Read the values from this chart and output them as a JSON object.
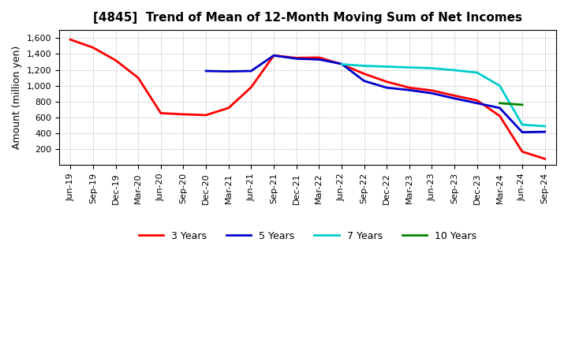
{
  "title": "[4845]  Trend of Mean of 12-Month Moving Sum of Net Incomes",
  "ylabel": "Amount (million yen)",
  "background_color": "#ffffff",
  "grid_color": "#aaaaaa",
  "ylim": [
    0,
    1700
  ],
  "yticks": [
    200,
    400,
    600,
    800,
    1000,
    1200,
    1400,
    1600
  ],
  "legend_labels": [
    "3 Years",
    "5 Years",
    "7 Years",
    "10 Years"
  ],
  "legend_colors": [
    "#ff0000",
    "#0000cc",
    "#00cccc",
    "#008800"
  ],
  "series": {
    "3y": {
      "color": "#ff0000",
      "points": [
        [
          0,
          1580
        ],
        [
          1,
          1480
        ],
        [
          2,
          1320
        ],
        [
          3,
          1100
        ],
        [
          4,
          655
        ],
        [
          5,
          640
        ],
        [
          6,
          630
        ],
        [
          7,
          720
        ],
        [
          8,
          980
        ],
        [
          9,
          1380
        ],
        [
          10,
          1350
        ],
        [
          11,
          1355
        ],
        [
          12,
          1270
        ],
        [
          13,
          1150
        ],
        [
          14,
          1050
        ],
        [
          15,
          975
        ],
        [
          16,
          940
        ],
        [
          17,
          875
        ],
        [
          18,
          815
        ],
        [
          19,
          620
        ],
        [
          20,
          170
        ],
        [
          21,
          80
        ]
      ]
    },
    "5y": {
      "color": "#0000cc",
      "points": [
        [
          6,
          1185
        ],
        [
          7,
          1180
        ],
        [
          8,
          1185
        ],
        [
          9,
          1380
        ],
        [
          10,
          1340
        ],
        [
          11,
          1330
        ],
        [
          12,
          1275
        ],
        [
          13,
          1060
        ],
        [
          14,
          975
        ],
        [
          15,
          945
        ],
        [
          16,
          905
        ],
        [
          17,
          840
        ],
        [
          18,
          780
        ],
        [
          19,
          720
        ],
        [
          20,
          415
        ],
        [
          21,
          420
        ]
      ]
    },
    "7y": {
      "color": "#00cccc",
      "points": [
        [
          12,
          1270
        ],
        [
          13,
          1250
        ],
        [
          14,
          1240
        ],
        [
          15,
          1230
        ],
        [
          16,
          1220
        ],
        [
          17,
          1195
        ],
        [
          18,
          1165
        ],
        [
          19,
          1000
        ],
        [
          20,
          510
        ],
        [
          21,
          490
        ]
      ]
    },
    "10y": {
      "color": "#008800",
      "points": [
        [
          19,
          780
        ],
        [
          20,
          760
        ]
      ]
    }
  },
  "xtick_labels": [
    "Jun-19",
    "Sep-19",
    "Dec-19",
    "Mar-20",
    "Jun-20",
    "Sep-20",
    "Dec-20",
    "Mar-21",
    "Jun-21",
    "Sep-21",
    "Dec-21",
    "Mar-22",
    "Jun-22",
    "Sep-22",
    "Dec-22",
    "Mar-23",
    "Jun-23",
    "Sep-23",
    "Dec-23",
    "Mar-24",
    "Jun-24",
    "Sep-24"
  ]
}
